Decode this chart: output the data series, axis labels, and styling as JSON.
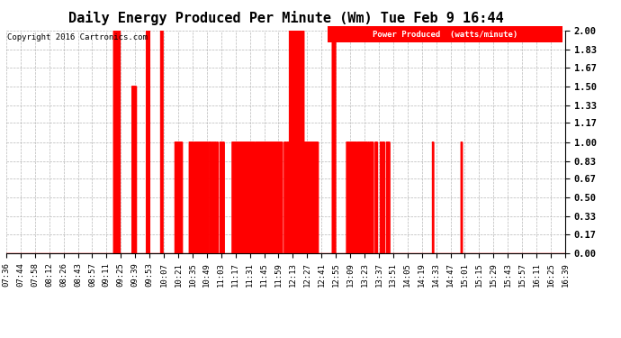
{
  "title": "Daily Energy Produced Per Minute (Wm) Tue Feb 9 16:44",
  "copyright": "Copyright 2016 Cartronics.com",
  "legend_label": "Power Produced  (watts/minute)",
  "ymin": 0.0,
  "ymax": 2.0,
  "yticks": [
    0.0,
    0.17,
    0.33,
    0.5,
    0.67,
    0.83,
    1.0,
    1.17,
    1.33,
    1.5,
    1.67,
    1.83,
    2.0
  ],
  "line_color": "#ff0000",
  "bg_color": "#ffffff",
  "grid_color": "#b0b0b0",
  "title_fontsize": 11,
  "tick_fontsize": 6.5,
  "x_labels": [
    "07:36",
    "07:44",
    "07:58",
    "08:12",
    "08:26",
    "08:43",
    "08:57",
    "09:11",
    "09:25",
    "09:39",
    "09:53",
    "10:07",
    "10:21",
    "10:35",
    "10:49",
    "11:03",
    "11:17",
    "11:31",
    "11:45",
    "11:59",
    "12:13",
    "12:27",
    "12:41",
    "12:55",
    "13:09",
    "13:23",
    "13:37",
    "13:51",
    "14:05",
    "14:19",
    "14:33",
    "14:47",
    "15:01",
    "15:15",
    "15:29",
    "15:43",
    "15:57",
    "16:11",
    "16:25",
    "16:39"
  ]
}
